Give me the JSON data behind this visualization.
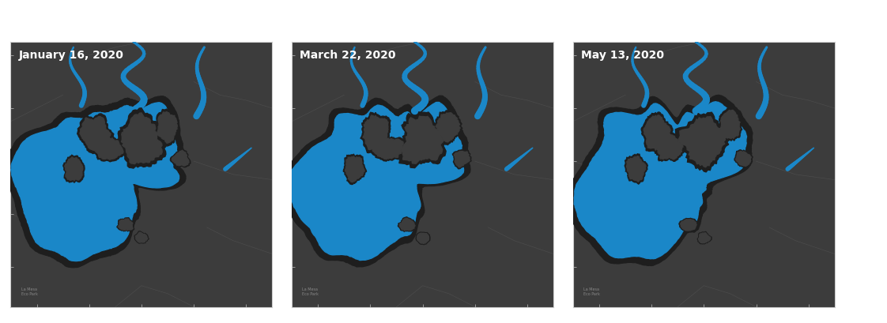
{
  "panels": [
    {
      "label": "January 16, 2020"
    },
    {
      "label": "March 22, 2020"
    },
    {
      "label": "May 13, 2020"
    }
  ],
  "water_color": "#1a87c8",
  "dark_land_color": "#1e1e1e",
  "panel_bg": "#3c3c3c",
  "border_color": "#cccccc",
  "label_color": "#ffffff",
  "label_fontsize": 10,
  "fig_bg": "#ffffff",
  "tick_color": "#aaaaaa",
  "road_color": "#5a5a5a",
  "small_text_color": "#888888"
}
